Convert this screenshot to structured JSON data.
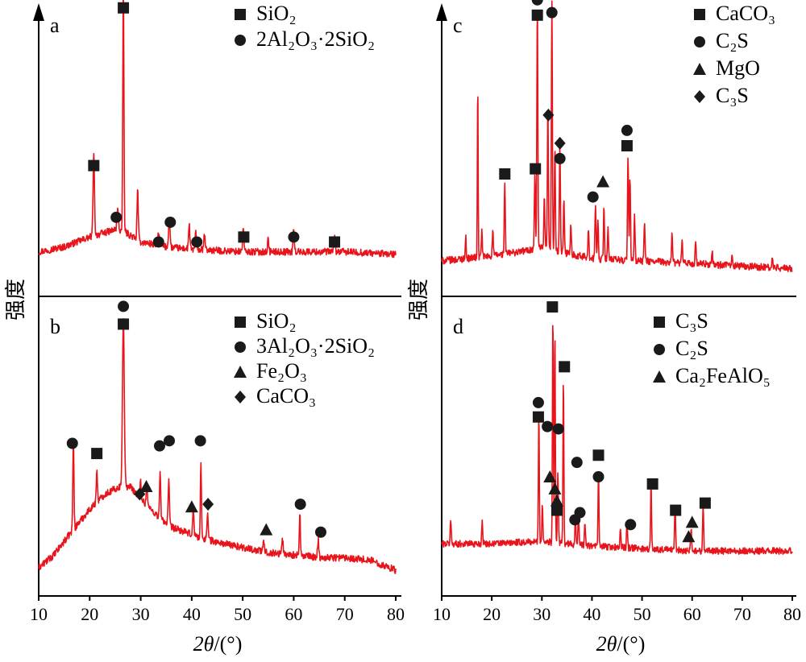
{
  "ylabel": "强度",
  "xlabel_var": "2θ",
  "xlabel_unit": "/(°)",
  "x_ticks": [
    "10",
    "20",
    "30",
    "40",
    "50",
    "60",
    "70",
    "80"
  ],
  "colors": {
    "pattern": "#e8141c",
    "axes": "#000000",
    "marker": "#1a1a1a"
  },
  "chart_data": [
    {
      "id": "a",
      "type": "line",
      "panel_label": "a",
      "xlim": [
        10,
        80
      ],
      "grid": false,
      "legend_position": "top-right",
      "legend": [
        {
          "symbol": "square",
          "text": "SiO₂"
        },
        {
          "symbol": "circle",
          "text": "2Al₂O₃·2SiO₂"
        }
      ],
      "background": [
        [
          10,
          0.05
        ],
        [
          15,
          0.07
        ],
        [
          20,
          0.11
        ],
        [
          25,
          0.14
        ],
        [
          27,
          0.13
        ],
        [
          30,
          0.09
        ],
        [
          35,
          0.07
        ],
        [
          40,
          0.06
        ],
        [
          50,
          0.05
        ],
        [
          60,
          0.05
        ],
        [
          70,
          0.05
        ],
        [
          80,
          0.04
        ]
      ],
      "peaks": [
        {
          "x": 20.8,
          "h": 0.33,
          "w": 0.28
        },
        {
          "x": 25.5,
          "h": 0.08,
          "w": 0.3
        },
        {
          "x": 26.6,
          "h": 1.0,
          "w": 0.22
        },
        {
          "x": 29.4,
          "h": 0.2,
          "w": 0.25
        },
        {
          "x": 33.5,
          "h": 0.05,
          "w": 0.3
        },
        {
          "x": 35.6,
          "h": 0.11,
          "w": 0.3
        },
        {
          "x": 39.5,
          "h": 0.1,
          "w": 0.25
        },
        {
          "x": 40.8,
          "h": 0.07,
          "w": 0.25
        },
        {
          "x": 42.5,
          "h": 0.06,
          "w": 0.25
        },
        {
          "x": 50.1,
          "h": 0.1,
          "w": 0.25
        },
        {
          "x": 55.0,
          "h": 0.05,
          "w": 0.25
        },
        {
          "x": 60.0,
          "h": 0.09,
          "w": 0.25
        },
        {
          "x": 68.0,
          "h": 0.06,
          "w": 0.25
        }
      ],
      "markers": [
        {
          "x": 26.6,
          "y": 1.04,
          "symbol": "square"
        },
        {
          "x": 20.8,
          "y": 0.4,
          "symbol": "square"
        },
        {
          "x": 25.2,
          "y": 0.19,
          "symbol": "circle"
        },
        {
          "x": 33.5,
          "y": 0.09,
          "symbol": "circle"
        },
        {
          "x": 35.8,
          "y": 0.17,
          "symbol": "circle"
        },
        {
          "x": 41.0,
          "y": 0.09,
          "symbol": "circle"
        },
        {
          "x": 50.2,
          "y": 0.11,
          "symbol": "square"
        },
        {
          "x": 60.0,
          "y": 0.11,
          "symbol": "circle"
        },
        {
          "x": 68.0,
          "y": 0.09,
          "symbol": "square"
        }
      ]
    },
    {
      "id": "b",
      "type": "line",
      "panel_label": "b",
      "xlim": [
        10,
        80
      ],
      "grid": false,
      "legend_position": "top-right",
      "legend": [
        {
          "symbol": "square",
          "text": "SiO₂"
        },
        {
          "symbol": "circle",
          "text": "3Al₂O₃·2SiO₂"
        },
        {
          "symbol": "triangle",
          "text": "Fe₂O₃"
        },
        {
          "symbol": "diamond",
          "text": "CaCO₃"
        }
      ],
      "background": [
        [
          10,
          0.01
        ],
        [
          13,
          0.06
        ],
        [
          16,
          0.14
        ],
        [
          20,
          0.24
        ],
        [
          23,
          0.3
        ],
        [
          26,
          0.33
        ],
        [
          28,
          0.33
        ],
        [
          30,
          0.28
        ],
        [
          33,
          0.22
        ],
        [
          36,
          0.17
        ],
        [
          40,
          0.14
        ],
        [
          45,
          0.11
        ],
        [
          50,
          0.09
        ],
        [
          55,
          0.07
        ],
        [
          60,
          0.06
        ],
        [
          65,
          0.05
        ],
        [
          70,
          0.05
        ],
        [
          75,
          0.04
        ],
        [
          80,
          0.0
        ]
      ],
      "peaks": [
        {
          "x": 16.8,
          "h": 0.36,
          "w": 0.22
        },
        {
          "x": 21.4,
          "h": 0.12,
          "w": 0.25
        },
        {
          "x": 26.6,
          "h": 0.67,
          "w": 0.35
        },
        {
          "x": 30.0,
          "h": 0.07,
          "w": 0.25
        },
        {
          "x": 31.2,
          "h": 0.08,
          "w": 0.25
        },
        {
          "x": 33.8,
          "h": 0.18,
          "w": 0.22
        },
        {
          "x": 35.5,
          "h": 0.17,
          "w": 0.25
        },
        {
          "x": 40.3,
          "h": 0.1,
          "w": 0.25
        },
        {
          "x": 41.8,
          "h": 0.3,
          "w": 0.2
        },
        {
          "x": 43.1,
          "h": 0.1,
          "w": 0.25
        },
        {
          "x": 54.1,
          "h": 0.04,
          "w": 0.25
        },
        {
          "x": 57.8,
          "h": 0.06,
          "w": 0.25
        },
        {
          "x": 61.2,
          "h": 0.17,
          "w": 0.2
        },
        {
          "x": 64.8,
          "h": 0.07,
          "w": 0.25
        }
      ],
      "markers": [
        {
          "x": 26.6,
          "y": 1.04,
          "symbol": "circle"
        },
        {
          "x": 26.6,
          "y": 0.97,
          "symbol": "square"
        },
        {
          "x": 16.6,
          "y": 0.5,
          "symbol": "circle"
        },
        {
          "x": 21.4,
          "y": 0.46,
          "symbol": "square"
        },
        {
          "x": 29.8,
          "y": 0.3,
          "symbol": "diamond"
        },
        {
          "x": 31.1,
          "y": 0.33,
          "symbol": "triangle"
        },
        {
          "x": 33.7,
          "y": 0.49,
          "symbol": "circle"
        },
        {
          "x": 35.6,
          "y": 0.51,
          "symbol": "circle"
        },
        {
          "x": 40.0,
          "y": 0.25,
          "symbol": "triangle"
        },
        {
          "x": 41.7,
          "y": 0.51,
          "symbol": "circle"
        },
        {
          "x": 43.2,
          "y": 0.26,
          "symbol": "diamond"
        },
        {
          "x": 54.6,
          "y": 0.16,
          "symbol": "triangle"
        },
        {
          "x": 61.3,
          "y": 0.26,
          "symbol": "circle"
        },
        {
          "x": 65.3,
          "y": 0.15,
          "symbol": "circle"
        }
      ]
    },
    {
      "id": "c",
      "type": "line",
      "panel_label": "c",
      "xlim": [
        10,
        80
      ],
      "grid": false,
      "legend_position": "top-right",
      "legend": [
        {
          "symbol": "square",
          "text": "CaCO₃"
        },
        {
          "symbol": "circle",
          "text": "C₂S"
        },
        {
          "symbol": "triangle",
          "text": "MgO"
        },
        {
          "symbol": "diamond",
          "text": "C₃S"
        }
      ],
      "background": [
        [
          10,
          0.05
        ],
        [
          20,
          0.07
        ],
        [
          30,
          0.1
        ],
        [
          35,
          0.08
        ],
        [
          40,
          0.06
        ],
        [
          50,
          0.05
        ],
        [
          60,
          0.04
        ],
        [
          70,
          0.03
        ],
        [
          80,
          0.02
        ]
      ],
      "peaks": [
        {
          "x": 14.8,
          "h": 0.08,
          "w": 0.2
        },
        {
          "x": 17.2,
          "h": 0.7,
          "w": 0.15
        },
        {
          "x": 18.0,
          "h": 0.1,
          "w": 0.2
        },
        {
          "x": 20.2,
          "h": 0.1,
          "w": 0.2
        },
        {
          "x": 22.6,
          "h": 0.28,
          "w": 0.2
        },
        {
          "x": 28.6,
          "h": 0.3,
          "w": 0.2
        },
        {
          "x": 29.1,
          "h": 0.96,
          "w": 0.2
        },
        {
          "x": 30.5,
          "h": 0.2,
          "w": 0.2
        },
        {
          "x": 31.2,
          "h": 0.55,
          "w": 0.2
        },
        {
          "x": 32.0,
          "h": 0.97,
          "w": 0.2
        },
        {
          "x": 32.6,
          "h": 0.4,
          "w": 0.2
        },
        {
          "x": 33.6,
          "h": 0.42,
          "w": 0.2
        },
        {
          "x": 34.4,
          "h": 0.2,
          "w": 0.2
        },
        {
          "x": 35.8,
          "h": 0.12,
          "w": 0.2
        },
        {
          "x": 39.3,
          "h": 0.12,
          "w": 0.2
        },
        {
          "x": 40.7,
          "h": 0.22,
          "w": 0.2
        },
        {
          "x": 41.2,
          "h": 0.15,
          "w": 0.2
        },
        {
          "x": 42.4,
          "h": 0.21,
          "w": 0.2
        },
        {
          "x": 43.2,
          "h": 0.12,
          "w": 0.2
        },
        {
          "x": 47.2,
          "h": 0.42,
          "w": 0.2
        },
        {
          "x": 47.6,
          "h": 0.32,
          "w": 0.2
        },
        {
          "x": 48.5,
          "h": 0.18,
          "w": 0.2
        },
        {
          "x": 50.5,
          "h": 0.16,
          "w": 0.2
        },
        {
          "x": 56.0,
          "h": 0.12,
          "w": 0.2
        },
        {
          "x": 58.0,
          "h": 0.08,
          "w": 0.2
        },
        {
          "x": 60.7,
          "h": 0.08,
          "w": 0.2
        },
        {
          "x": 64.0,
          "h": 0.05,
          "w": 0.2
        },
        {
          "x": 68.0,
          "h": 0.05,
          "w": 0.2
        },
        {
          "x": 76.0,
          "h": 0.04,
          "w": 0.2
        }
      ],
      "markers": [
        {
          "x": 29.1,
          "y": 1.07,
          "symbol": "circle"
        },
        {
          "x": 29.1,
          "y": 1.01,
          "symbol": "square"
        },
        {
          "x": 32.0,
          "y": 1.02,
          "symbol": "circle"
        },
        {
          "x": 31.3,
          "y": 0.62,
          "symbol": "diamond"
        },
        {
          "x": 33.6,
          "y": 0.51,
          "symbol": "diamond"
        },
        {
          "x": 33.6,
          "y": 0.45,
          "symbol": "circle"
        },
        {
          "x": 22.6,
          "y": 0.39,
          "symbol": "square"
        },
        {
          "x": 28.7,
          "y": 0.41,
          "symbol": "square"
        },
        {
          "x": 40.2,
          "y": 0.3,
          "symbol": "circle"
        },
        {
          "x": 42.2,
          "y": 0.36,
          "symbol": "triangle"
        },
        {
          "x": 47.0,
          "y": 0.56,
          "symbol": "circle"
        },
        {
          "x": 47.0,
          "y": 0.5,
          "symbol": "square"
        }
      ]
    },
    {
      "id": "d",
      "type": "line",
      "panel_label": "d",
      "xlim": [
        10,
        80
      ],
      "grid": false,
      "legend_position": "top-right",
      "legend": [
        {
          "symbol": "square",
          "text": "C₃S"
        },
        {
          "symbol": "circle",
          "text": "C₂S"
        },
        {
          "symbol": "triangle",
          "text": "Ca₂FeAlO₅"
        }
      ],
      "background": [
        [
          10,
          0.05
        ],
        [
          20,
          0.05
        ],
        [
          30,
          0.06
        ],
        [
          35,
          0.05
        ],
        [
          40,
          0.04
        ],
        [
          50,
          0.03
        ],
        [
          60,
          0.02
        ],
        [
          70,
          0.02
        ],
        [
          80,
          0.02
        ]
      ],
      "peaks": [
        {
          "x": 11.8,
          "h": 0.1,
          "w": 0.2
        },
        {
          "x": 18.1,
          "h": 0.1,
          "w": 0.2
        },
        {
          "x": 29.4,
          "h": 0.55,
          "w": 0.18
        },
        {
          "x": 30.1,
          "h": 0.15,
          "w": 0.2
        },
        {
          "x": 32.2,
          "h": 0.98,
          "w": 0.18
        },
        {
          "x": 32.6,
          "h": 0.9,
          "w": 0.18
        },
        {
          "x": 33.2,
          "h": 0.3,
          "w": 0.2
        },
        {
          "x": 34.3,
          "h": 0.7,
          "w": 0.18
        },
        {
          "x": 36.7,
          "h": 0.12,
          "w": 0.2
        },
        {
          "x": 37.3,
          "h": 0.14,
          "w": 0.2
        },
        {
          "x": 38.6,
          "h": 0.1,
          "w": 0.2
        },
        {
          "x": 41.3,
          "h": 0.32,
          "w": 0.18
        },
        {
          "x": 45.7,
          "h": 0.08,
          "w": 0.2
        },
        {
          "x": 47.0,
          "h": 0.1,
          "w": 0.2
        },
        {
          "x": 51.8,
          "h": 0.28,
          "w": 0.18
        },
        {
          "x": 56.6,
          "h": 0.18,
          "w": 0.2
        },
        {
          "x": 59.8,
          "h": 0.1,
          "w": 0.2
        },
        {
          "x": 62.2,
          "h": 0.2,
          "w": 0.2
        }
      ],
      "markers": [
        {
          "x": 32.1,
          "y": 1.04,
          "symbol": "square"
        },
        {
          "x": 34.5,
          "y": 0.79,
          "symbol": "square"
        },
        {
          "x": 29.3,
          "y": 0.64,
          "symbol": "circle"
        },
        {
          "x": 29.3,
          "y": 0.58,
          "symbol": "square"
        },
        {
          "x": 31.1,
          "y": 0.54,
          "symbol": "circle"
        },
        {
          "x": 33.3,
          "y": 0.53,
          "symbol": "circle"
        },
        {
          "x": 31.6,
          "y": 0.33,
          "symbol": "triangle"
        },
        {
          "x": 32.6,
          "y": 0.28,
          "symbol": "triangle"
        },
        {
          "x": 33.0,
          "y": 0.23,
          "symbol": "triangle"
        },
        {
          "x": 33.0,
          "y": 0.19,
          "symbol": "square"
        },
        {
          "x": 37.0,
          "y": 0.39,
          "symbol": "circle"
        },
        {
          "x": 36.6,
          "y": 0.15,
          "symbol": "circle"
        },
        {
          "x": 37.6,
          "y": 0.18,
          "symbol": "circle"
        },
        {
          "x": 41.3,
          "y": 0.42,
          "symbol": "square"
        },
        {
          "x": 41.3,
          "y": 0.33,
          "symbol": "circle"
        },
        {
          "x": 47.7,
          "y": 0.13,
          "symbol": "circle"
        },
        {
          "x": 52.1,
          "y": 0.3,
          "symbol": "square"
        },
        {
          "x": 56.7,
          "y": 0.19,
          "symbol": "square"
        },
        {
          "x": 59.3,
          "y": 0.08,
          "symbol": "triangle"
        },
        {
          "x": 60.0,
          "y": 0.14,
          "symbol": "triangle"
        },
        {
          "x": 62.6,
          "y": 0.22,
          "symbol": "square"
        }
      ]
    }
  ]
}
